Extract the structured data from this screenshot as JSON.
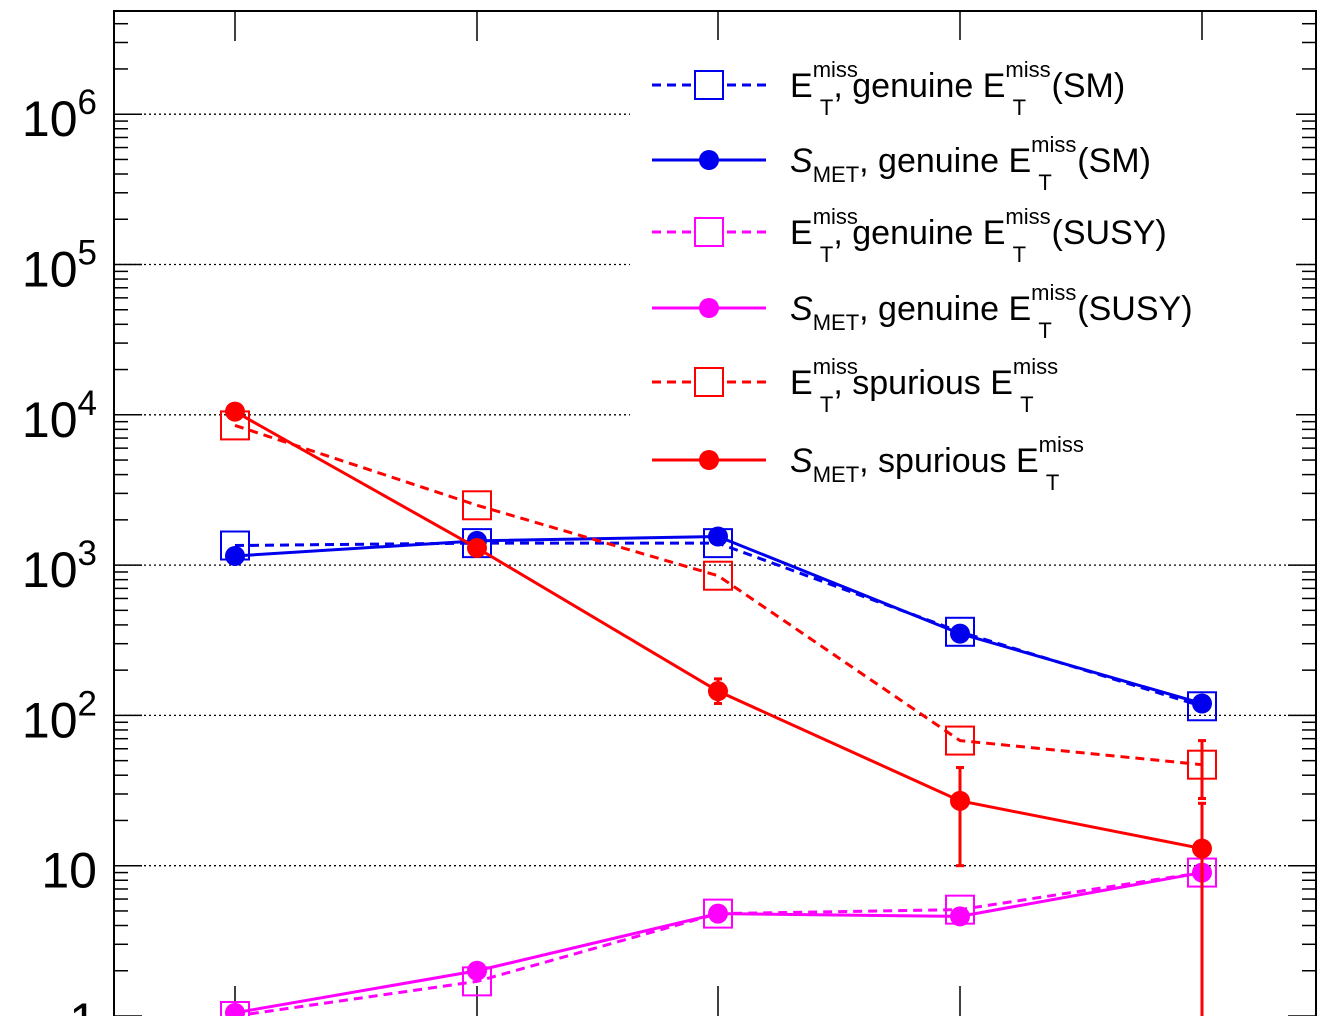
{
  "chart_data": {
    "type": "line",
    "title": "",
    "xlabel": "",
    "ylabel": "",
    "yscale": "log",
    "ylim": [
      1,
      6000000
    ],
    "grid": "horizontal dotted at decades",
    "legend_position": "top-right",
    "x": [
      1,
      2,
      3,
      4,
      5
    ],
    "y_tick_labels": [
      {
        "value": 1,
        "base": "1",
        "exp": ""
      },
      {
        "value": 10,
        "base": "10",
        "exp": ""
      },
      {
        "value": 100,
        "base": "10",
        "exp": "2"
      },
      {
        "value": 1000,
        "base": "10",
        "exp": "3"
      },
      {
        "value": 10000,
        "base": "10",
        "exp": "4"
      },
      {
        "value": 100000,
        "base": "10",
        "exp": "5"
      },
      {
        "value": 1000000,
        "base": "10",
        "exp": "6"
      }
    ],
    "series": [
      {
        "label": {
          "pre": "E",
          "sup": "miss",
          "sub": "T",
          "mid": ", genuine E",
          "sup2": "miss",
          "sub2": "T",
          "post": " (SM)"
        },
        "color": "#0000ee",
        "dash": true,
        "marker": "open-square",
        "values": [
          1350,
          1400,
          1400,
          360,
          115
        ],
        "err_up": [],
        "err_down": []
      },
      {
        "label": {
          "pre": "S",
          "sup": "",
          "sub": "MET",
          "mid": ", genuine E",
          "sup2": "miss",
          "sub2": "T",
          "post": " (SM)"
        },
        "color": "#0000ee",
        "dash": false,
        "marker": "filled-circle",
        "values": [
          1150,
          1450,
          1550,
          350,
          120
        ],
        "err_up": [],
        "err_down": []
      },
      {
        "label": {
          "pre": "E",
          "sup": "miss",
          "sub": "T",
          "mid": ", genuine E",
          "sup2": "miss",
          "sub2": "T",
          "post": " (SUSY)"
        },
        "color": "#ff00ff",
        "dash": true,
        "marker": "open-square",
        "values": [
          1.0,
          1.7,
          4.8,
          5.1,
          9.0
        ],
        "err_up": [],
        "err_down": []
      },
      {
        "label": {
          "pre": "S",
          "sup": "",
          "sub": "MET",
          "mid": ", genuine E",
          "sup2": "miss",
          "sub2": "T",
          "post": " (SUSY)"
        },
        "color": "#ff00ff",
        "dash": false,
        "marker": "filled-circle",
        "values": [
          1.05,
          2.0,
          4.8,
          4.6,
          9.0
        ],
        "err_up": [],
        "err_down": []
      },
      {
        "label": {
          "pre": "E",
          "sup": "miss",
          "sub": "T",
          "mid": ", spurious E",
          "sup2": "miss",
          "sub2": "T",
          "post": ""
        },
        "color": "#ff0000",
        "dash": true,
        "marker": "open-square",
        "values": [
          8500,
          2500,
          850,
          68,
          47
        ],
        "err_up": [
          null,
          null,
          null,
          null,
          68
        ],
        "err_down": [
          null,
          null,
          null,
          null,
          28
        ]
      },
      {
        "label": {
          "pre": "S",
          "sup": "",
          "sub": "MET",
          "mid": ", spurious E",
          "sup2": "miss",
          "sub2": "T",
          "post": ""
        },
        "color": "#ff0000",
        "dash": false,
        "marker": "filled-circle",
        "values": [
          10500,
          1300,
          145,
          27,
          13
        ],
        "err_up": [
          null,
          null,
          175,
          45,
          26
        ],
        "err_down": [
          null,
          null,
          120,
          10,
          1
        ]
      }
    ]
  }
}
